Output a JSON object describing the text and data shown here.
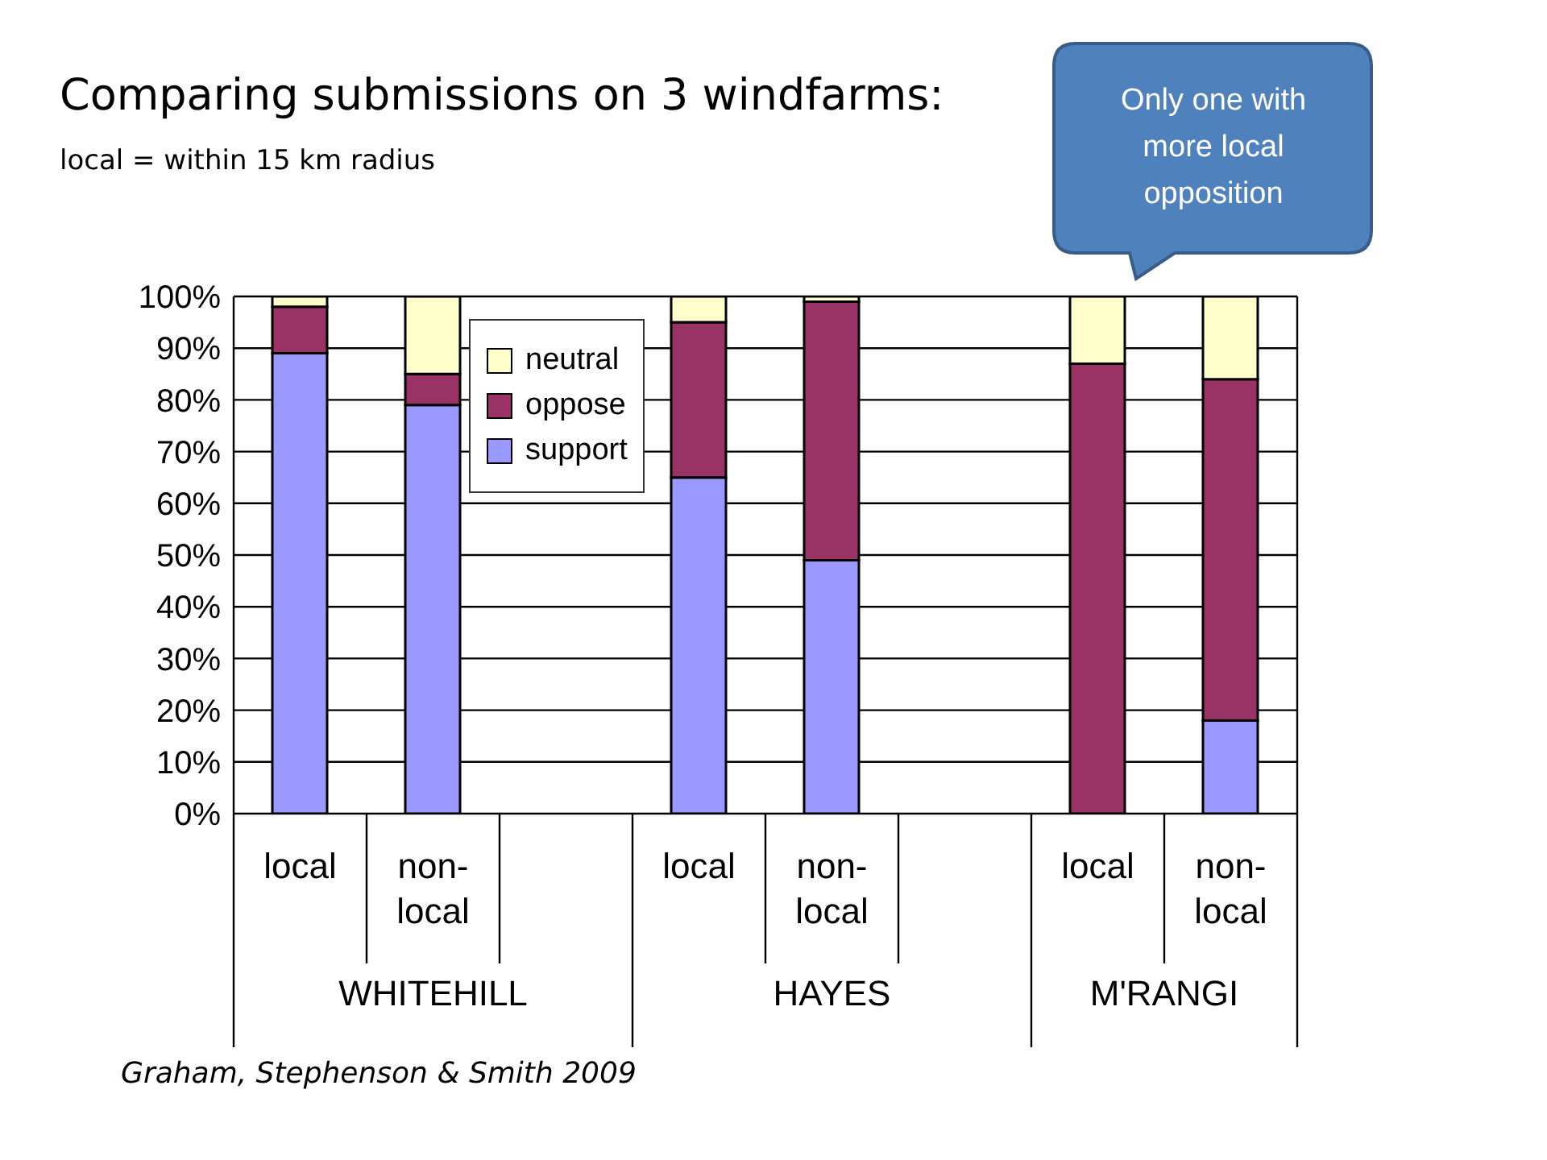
{
  "chart_data": {
    "type": "bar",
    "stacked": true,
    "title": "Comparing submissions on 3 windfarms:",
    "subtitle": "local = within 15 km radius",
    "categories": [
      "local",
      "non-local",
      null,
      "local",
      "non-local",
      null,
      "local",
      "non-local"
    ],
    "series": [
      {
        "name": "support",
        "color": "#9999ff",
        "values": [
          89,
          79,
          null,
          65,
          49,
          null,
          0,
          18
        ]
      },
      {
        "name": "oppose",
        "color": "#993366",
        "values": [
          9,
          6,
          null,
          30,
          50,
          null,
          87,
          66
        ]
      },
      {
        "name": "neutral",
        "color": "#ffffcc",
        "values": [
          2,
          15,
          null,
          5,
          1,
          null,
          13,
          16
        ]
      }
    ],
    "ylim": [
      0,
      100
    ],
    "yticks": [
      {
        "value": 0,
        "label": "0%"
      },
      {
        "value": 10,
        "label": "10%"
      },
      {
        "value": 20,
        "label": "20%"
      },
      {
        "value": 30,
        "label": "30%"
      },
      {
        "value": 40,
        "label": "40%"
      },
      {
        "value": 50,
        "label": "50%"
      },
      {
        "value": 60,
        "label": "60%"
      },
      {
        "value": 70,
        "label": "70%"
      },
      {
        "value": 80,
        "label": "80%"
      },
      {
        "value": 90,
        "label": "90%"
      },
      {
        "value": 100,
        "label": "100%"
      }
    ],
    "grid": "y",
    "legend": "top left",
    "annotations": [
      "WHITEHILL",
      "HAYES",
      "M'RANGI",
      "Only one with more local opposition",
      "Graham, Stephenson & Smith 2009"
    ]
  }
}
